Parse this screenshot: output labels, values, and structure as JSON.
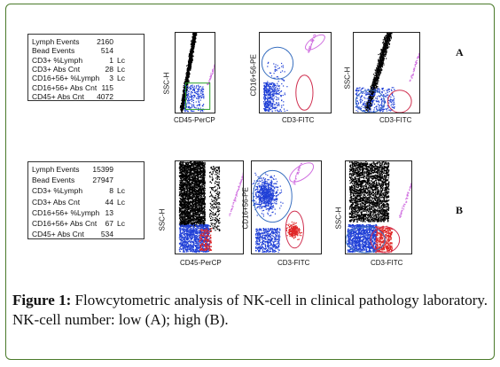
{
  "panels": [
    {
      "letter": "A",
      "stats": [
        {
          "label": "Lymph Events",
          "value": "2160",
          "unit": ""
        },
        {
          "label": "Bead Events",
          "value": "514",
          "unit": ""
        },
        {
          "label": "CD3+ %Lymph",
          "value": "1",
          "unit": "Lc"
        },
        {
          "label": "CD3+ Abs Cnt",
          "value": "28",
          "unit": "Lc"
        },
        {
          "label": "CD16+56+ %Lymph",
          "value": "3",
          "unit": "Lc"
        },
        {
          "label": "CD16+56+ Abs Cnt",
          "value": "115",
          "unit": ""
        },
        {
          "label": "CD45+ Abs Cnt",
          "value": "4072",
          "unit": ""
        }
      ],
      "plots": [
        {
          "ylabel": "SSC-H",
          "xlabel": "CD45-PerCP"
        },
        {
          "ylabel": "CD16+56-PE",
          "xlabel": "CD3-FITC"
        },
        {
          "ylabel": "SSC-H",
          "xlabel": "CD3-FITC"
        }
      ]
    },
    {
      "letter": "B",
      "stats": [
        {
          "label": "Lymph Events",
          "value": "15399",
          "unit": ""
        },
        {
          "label": "Bead Events",
          "value": "27947",
          "unit": ""
        },
        {
          "label": "CD3+ %Lymph",
          "value": "8",
          "unit": "Lc"
        },
        {
          "label": "CD3+ Abs Cnt",
          "value": "44",
          "unit": "Lc"
        },
        {
          "label": "CD16+56+ %Lymph",
          "value": "13",
          "unit": ""
        },
        {
          "label": "CD16+56+ Abs Cnt",
          "value": "67",
          "unit": "Lc"
        },
        {
          "label": "CD45+ Abs Cnt",
          "value": "534",
          "unit": ""
        }
      ],
      "plots": [
        {
          "ylabel": "SSC-H",
          "xlabel": "CD45-PerCP"
        },
        {
          "ylabel": "CD16+56-PE",
          "xlabel": "CD3-FITC"
        },
        {
          "ylabel": "SSC-H",
          "xlabel": "CD3-FITC"
        }
      ]
    }
  ],
  "caption": {
    "label": "Figure 1:",
    "text": " Flowcytometric analysis of NK-cell in clinical pathology laboratory. NK-cell number: low (A); high (B)."
  },
  "colors": {
    "frame": "#4a7a2a",
    "black_population": "#000000",
    "blue_population": "#1f3fd6",
    "red_population": "#e02828",
    "magenta_population": "#d070e0",
    "gate_green": "#2aa02a",
    "gate_blue": "#3a70c0",
    "gate_red": "#d03050",
    "gate_magenta": "#d070e0"
  }
}
